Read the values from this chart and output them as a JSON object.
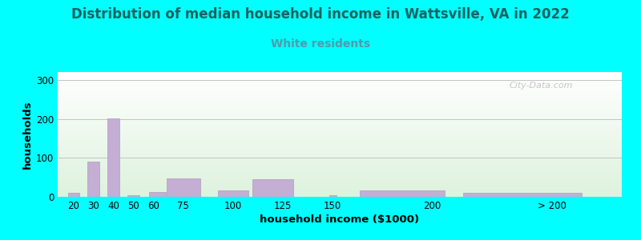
{
  "title": "Distribution of median household income in Wattsville, VA in 2022",
  "subtitle": "White residents",
  "xlabel": "household income ($1000)",
  "ylabel": "households",
  "title_fontsize": 12,
  "subtitle_fontsize": 10,
  "title_color": "#1A6060",
  "subtitle_color": "#5599AA",
  "xlabel_fontsize": 9.5,
  "ylabel_fontsize": 9.5,
  "background_outer": "#00FFFF",
  "bar_color": "#C4AED4",
  "bar_edgecolor": "#B09CC0",
  "ylim": [
    0,
    320
  ],
  "yticks": [
    0,
    100,
    200,
    300
  ],
  "bar_positions": [
    20,
    30,
    40,
    50,
    62,
    75,
    100,
    120,
    150,
    185,
    245
  ],
  "bar_widths": [
    7,
    7,
    7,
    7,
    10,
    20,
    18,
    24,
    4,
    50,
    70
  ],
  "bar_values": [
    10,
    90,
    202,
    5,
    12,
    48,
    16,
    46,
    4,
    16,
    10
  ],
  "xtick_labels": [
    "20",
    "30",
    "40",
    "50",
    "60",
    "75",
    "100",
    "125",
    "150",
    "200",
    "> 200"
  ],
  "xtick_positions": [
    20,
    30,
    40,
    50,
    60,
    75,
    100,
    125,
    150,
    200,
    260
  ],
  "xlim": [
    12,
    295
  ],
  "watermark": "City-Data.com"
}
